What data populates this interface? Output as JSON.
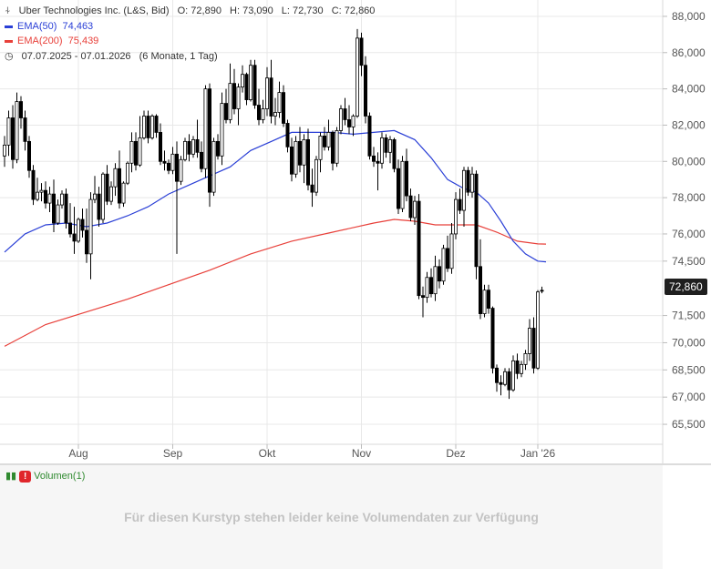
{
  "header": {
    "title": "Uber Technologies Inc. (L&S, Bid)",
    "open": "O: 72,890",
    "high": "H: 73,090",
    "low": "L: 72,730",
    "close": "C: 72,860",
    "ema50_label": "EMA(50)",
    "ema50_value": "74,463",
    "ema200_label": "EMA(200)",
    "ema200_value": "75,439",
    "date_range": "07.07.2025 - 07.01.2026",
    "period": "(6 Monate, 1 Tag)"
  },
  "last_price_tag": "72,860",
  "volume": {
    "label": "Volumen(1)",
    "message": "Für diesen Kurstyp stehen leider keine Volumendaten zur Verfügung"
  },
  "colors": {
    "ema50": "#2a3fd6",
    "ema200": "#e8403a",
    "candle_up": "#ffffff",
    "candle_down": "#000000",
    "grid": "#e8e8e8",
    "volume_text": "#2f8a2f",
    "warning": "#e0262b"
  },
  "chart_data": {
    "type": "candlestick",
    "ylim": [
      64.8,
      88.5
    ],
    "y_ticks": [
      88,
      86,
      84,
      82,
      80,
      78,
      76,
      74.5,
      71.5,
      70,
      68.5,
      67,
      65.5
    ],
    "y_tick_labels": [
      "88,000",
      "86,000",
      "84,000",
      "82,000",
      "80,000",
      "78,000",
      "76,000",
      "74,500",
      "71,500",
      "70,000",
      "68,500",
      "67,000",
      "65,500"
    ],
    "x_months": [
      "Aug",
      "Sep",
      "Okt",
      "Nov",
      "Dez",
      "Jan '26"
    ],
    "x_month_index": [
      18,
      41,
      64,
      87,
      110,
      130
    ],
    "candles": [
      [
        80.3,
        81.4,
        79.7,
        80.9
      ],
      [
        80.9,
        82.8,
        80.3,
        82.4
      ],
      [
        82.4,
        83.1,
        79.6,
        80.1
      ],
      [
        80.1,
        83.8,
        79.9,
        83.3
      ],
      [
        83.3,
        83.6,
        81.8,
        82.4
      ],
      [
        82.4,
        82.8,
        80.6,
        81.1
      ],
      [
        81.1,
        81.4,
        79.1,
        79.5
      ],
      [
        79.5,
        79.8,
        77.6,
        77.9
      ],
      [
        77.9,
        79.1,
        77.8,
        78.3
      ],
      [
        78.3,
        78.8,
        77.8,
        78.4
      ],
      [
        78.4,
        78.9,
        77.4,
        77.7
      ],
      [
        77.7,
        78.6,
        77.2,
        78.2
      ],
      [
        78.2,
        79.0,
        76.1,
        76.6
      ],
      [
        76.6,
        77.9,
        76.5,
        77.6
      ],
      [
        77.6,
        78.4,
        77.4,
        78.2
      ],
      [
        78.2,
        78.5,
        76.3,
        76.6
      ],
      [
        76.6,
        77.7,
        75.8,
        76.0
      ],
      [
        76.0,
        77.5,
        74.9,
        75.6
      ],
      [
        75.6,
        76.9,
        75.5,
        76.8
      ],
      [
        76.8,
        77.4,
        75.8,
        76.2
      ],
      [
        76.2,
        77.4,
        74.4,
        74.9
      ],
      [
        74.9,
        78.3,
        73.5,
        77.9
      ],
      [
        77.9,
        79.2,
        77.7,
        78.2
      ],
      [
        78.2,
        78.6,
        76.4,
        76.8
      ],
      [
        76.8,
        79.4,
        76.6,
        79.3
      ],
      [
        79.3,
        79.8,
        77.6,
        77.8
      ],
      [
        77.8,
        78.9,
        77.6,
        78.6
      ],
      [
        78.6,
        79.9,
        78.1,
        79.6
      ],
      [
        79.6,
        80.6,
        77.4,
        77.7
      ],
      [
        77.7,
        78.9,
        77.5,
        78.8
      ],
      [
        78.8,
        80.0,
        78.7,
        79.9
      ],
      [
        79.9,
        81.6,
        79.4,
        81.1
      ],
      [
        81.1,
        81.6,
        79.5,
        79.8
      ],
      [
        79.8,
        82.5,
        79.7,
        81.3
      ],
      [
        81.3,
        82.8,
        81.2,
        82.5
      ],
      [
        82.5,
        82.8,
        81.0,
        81.3
      ],
      [
        81.3,
        82.6,
        81.2,
        82.5
      ],
      [
        82.5,
        82.6,
        81.3,
        81.6
      ],
      [
        81.6,
        82.1,
        79.8,
        80.0
      ],
      [
        80.0,
        80.6,
        79.5,
        79.9
      ],
      [
        79.9,
        80.1,
        79.3,
        79.5
      ],
      [
        79.5,
        80.8,
        79.3,
        80.4
      ],
      [
        80.4,
        81.1,
        74.9,
        78.9
      ],
      [
        78.9,
        80.3,
        78.7,
        80.1
      ],
      [
        80.1,
        81.3,
        80.0,
        81.1
      ],
      [
        81.1,
        81.5,
        80.0,
        80.4
      ],
      [
        80.4,
        81.4,
        80.2,
        81.2
      ],
      [
        81.2,
        82.3,
        80.2,
        80.5
      ],
      [
        80.5,
        81.1,
        79.4,
        79.6
      ],
      [
        79.6,
        84.2,
        79.1,
        84.0
      ],
      [
        84.0,
        84.3,
        77.5,
        78.3
      ],
      [
        78.3,
        81.3,
        78.1,
        81.1
      ],
      [
        81.1,
        81.5,
        80.1,
        80.3
      ],
      [
        80.3,
        83.8,
        79.8,
        83.2
      ],
      [
        83.2,
        84.0,
        82.1,
        82.3
      ],
      [
        82.3,
        85.4,
        82.1,
        84.3
      ],
      [
        84.3,
        85.1,
        82.6,
        82.9
      ],
      [
        82.9,
        84.3,
        82.0,
        84.1
      ],
      [
        84.1,
        85.3,
        83.8,
        84.8
      ],
      [
        84.8,
        84.9,
        83.1,
        83.4
      ],
      [
        83.4,
        85.6,
        83.3,
        85.3
      ],
      [
        85.3,
        85.6,
        82.9,
        83.1
      ],
      [
        83.1,
        84.0,
        82.0,
        82.3
      ],
      [
        82.3,
        83.4,
        82.1,
        82.9
      ],
      [
        82.9,
        85.2,
        82.5,
        84.6
      ],
      [
        84.6,
        85.6,
        82.1,
        82.5
      ],
      [
        82.5,
        83.5,
        82.0,
        82.7
      ],
      [
        82.7,
        84.4,
        82.4,
        83.8
      ],
      [
        83.8,
        84.2,
        81.9,
        82.1
      ],
      [
        82.1,
        82.3,
        80.5,
        80.8
      ],
      [
        80.8,
        81.3,
        78.9,
        79.3
      ],
      [
        79.3,
        81.4,
        79.1,
        81.1
      ],
      [
        81.1,
        81.9,
        79.4,
        79.8
      ],
      [
        79.8,
        81.5,
        78.8,
        81.2
      ],
      [
        81.2,
        81.8,
        78.4,
        78.7
      ],
      [
        78.7,
        79.6,
        77.5,
        78.3
      ],
      [
        78.3,
        80.3,
        78.1,
        80.1
      ],
      [
        80.1,
        81.6,
        79.4,
        81.4
      ],
      [
        81.4,
        81.9,
        80.6,
        80.8
      ],
      [
        80.8,
        82.3,
        80.6,
        81.6
      ],
      [
        81.6,
        81.7,
        79.5,
        79.9
      ],
      [
        79.9,
        81.9,
        79.7,
        81.7
      ],
      [
        81.7,
        83.1,
        81.5,
        82.9
      ],
      [
        82.9,
        83.5,
        82.0,
        82.3
      ],
      [
        82.3,
        83.1,
        81.5,
        81.9
      ],
      [
        81.9,
        82.6,
        81.4,
        82.5
      ],
      [
        82.5,
        87.3,
        82.4,
        86.8
      ],
      [
        86.8,
        87.1,
        84.7,
        85.3
      ],
      [
        85.3,
        85.8,
        82.1,
        82.5
      ],
      [
        82.5,
        82.7,
        80.1,
        80.3
      ],
      [
        80.3,
        80.8,
        79.7,
        80.0
      ],
      [
        80.0,
        80.5,
        78.4,
        79.9
      ],
      [
        79.9,
        81.6,
        79.6,
        81.3
      ],
      [
        81.3,
        81.5,
        80.2,
        80.5
      ],
      [
        80.5,
        81.4,
        79.9,
        81.2
      ],
      [
        81.2,
        81.3,
        79.4,
        79.6
      ],
      [
        79.6,
        80.1,
        77.1,
        77.4
      ],
      [
        77.4,
        80.3,
        77.2,
        80.0
      ],
      [
        80.0,
        80.7,
        77.8,
        78.1
      ],
      [
        78.1,
        78.5,
        76.7,
        76.9
      ],
      [
        76.9,
        78.1,
        76.5,
        77.8
      ],
      [
        77.8,
        78.2,
        72.4,
        72.6
      ],
      [
        72.6,
        73.1,
        71.4,
        72.5
      ],
      [
        72.5,
        73.9,
        72.2,
        73.6
      ],
      [
        73.6,
        74.1,
        72.5,
        72.7
      ],
      [
        72.7,
        74.8,
        72.3,
        74.2
      ],
      [
        74.2,
        74.6,
        73.0,
        73.4
      ],
      [
        73.4,
        75.4,
        73.2,
        75.2
      ],
      [
        75.2,
        75.9,
        73.9,
        74.1
      ],
      [
        74.1,
        76.6,
        73.8,
        76.0
      ],
      [
        76.0,
        78.3,
        75.7,
        77.9
      ],
      [
        77.9,
        78.5,
        77.1,
        77.3
      ],
      [
        77.3,
        79.7,
        76.4,
        79.5
      ],
      [
        79.5,
        79.7,
        78.1,
        78.3
      ],
      [
        78.3,
        79.7,
        78.0,
        79.3
      ],
      [
        79.3,
        79.5,
        73.5,
        74.2
      ],
      [
        74.2,
        75.7,
        71.3,
        71.6
      ],
      [
        71.6,
        73.2,
        71.4,
        72.9
      ],
      [
        72.9,
        73.2,
        71.6,
        71.9
      ],
      [
        71.9,
        72.0,
        68.3,
        68.6
      ],
      [
        68.6,
        68.8,
        67.3,
        67.8
      ],
      [
        67.8,
        68.2,
        67.1,
        67.7
      ],
      [
        67.7,
        68.6,
        67.6,
        68.4
      ],
      [
        68.4,
        68.6,
        66.9,
        67.4
      ],
      [
        67.4,
        69.3,
        67.3,
        69.0
      ],
      [
        69.0,
        69.4,
        68.0,
        68.3
      ],
      [
        68.3,
        69.0,
        68.1,
        68.8
      ],
      [
        68.8,
        69.6,
        68.5,
        69.4
      ],
      [
        69.4,
        71.3,
        69.0,
        70.8
      ],
      [
        70.8,
        71.4,
        68.3,
        68.6
      ],
      [
        68.6,
        72.9,
        68.5,
        72.8
      ],
      [
        72.89,
        73.09,
        72.73,
        72.86
      ]
    ],
    "ema50": [
      [
        0,
        75.0
      ],
      [
        5,
        76.0
      ],
      [
        10,
        76.5
      ],
      [
        15,
        76.6
      ],
      [
        20,
        76.4
      ],
      [
        25,
        76.6
      ],
      [
        30,
        77.0
      ],
      [
        35,
        77.5
      ],
      [
        40,
        78.2
      ],
      [
        45,
        78.7
      ],
      [
        50,
        79.2
      ],
      [
        55,
        79.7
      ],
      [
        60,
        80.6
      ],
      [
        65,
        81.1
      ],
      [
        70,
        81.6
      ],
      [
        75,
        81.6
      ],
      [
        80,
        81.6
      ],
      [
        85,
        81.5
      ],
      [
        90,
        81.6
      ],
      [
        95,
        81.7
      ],
      [
        100,
        81.2
      ],
      [
        104,
        80.2
      ],
      [
        108,
        79.0
      ],
      [
        112,
        78.5
      ],
      [
        115,
        78.3
      ],
      [
        118,
        77.7
      ],
      [
        121,
        76.7
      ],
      [
        124,
        75.6
      ],
      [
        127,
        74.9
      ],
      [
        130,
        74.5
      ],
      [
        132,
        74.46
      ]
    ],
    "ema200": [
      [
        0,
        69.8
      ],
      [
        10,
        71.0
      ],
      [
        20,
        71.7
      ],
      [
        30,
        72.4
      ],
      [
        40,
        73.2
      ],
      [
        50,
        74.0
      ],
      [
        60,
        74.9
      ],
      [
        70,
        75.6
      ],
      [
        80,
        76.1
      ],
      [
        90,
        76.6
      ],
      [
        95,
        76.8
      ],
      [
        100,
        76.7
      ],
      [
        105,
        76.5
      ],
      [
        110,
        76.5
      ],
      [
        115,
        76.5
      ],
      [
        120,
        76.1
      ],
      [
        125,
        75.6
      ],
      [
        130,
        75.45
      ],
      [
        132,
        75.44
      ]
    ]
  }
}
